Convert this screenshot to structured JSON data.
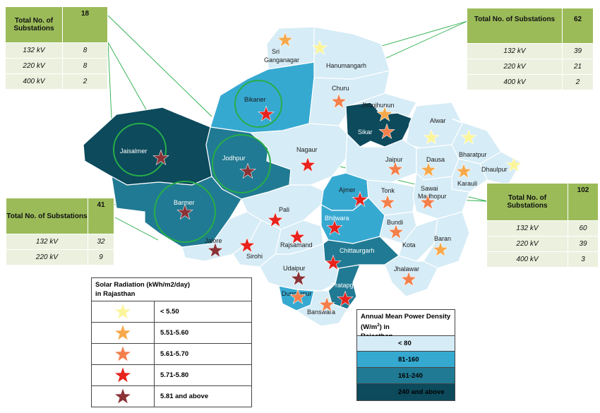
{
  "colors": {
    "density_lt80": "#d6ecf6",
    "density_81_160": "#36a9d1",
    "density_161_240": "#217a93",
    "density_240_above": "#0c4a5c",
    "star_lt550": "#fbf59a",
    "star_551_560": "#f6a84a",
    "star_561_570": "#f37f4b",
    "star_571_580": "#e8221c",
    "star_581_above": "#8a3236",
    "table_header": "#9bbb59",
    "table_row": "#ebf1de",
    "circle": "#27ad48"
  },
  "districts": {
    "sri_ganganagar": "Sri Ganganagar",
    "hanumangarh": "Hanumangarh",
    "bikaner": "Bikaner",
    "churu": "Churu",
    "jhunjhunun": "Jhunjhunun",
    "sikar": "Sikar",
    "alwar": "Alwar",
    "bharatpur": "Bharatpur",
    "dhaulpur": "Dhaulpur",
    "jaisalmer": "Jaisalmer",
    "jodhpur": "Jodhpur",
    "nagaur": "Nagaur",
    "jaipur": "Jaipur",
    "dausa": "Dausa",
    "karauli": "Karauli",
    "barmer": "Barmer",
    "ajmer": "Ajmer",
    "tonk": "Tonk",
    "sawai_madhopur_1": "Sawai",
    "sawai_madhopur_2": "Madhopur",
    "pali": "Pali",
    "bhilwara": "Bhilwara",
    "bundi": "Bundi",
    "jalore": "Jalore",
    "sirohi": "Sirohi",
    "rajsamand": "Rajsamand",
    "kota": "Kota",
    "baran": "Baran",
    "chittaurgarh": "Chittaurgarh",
    "udaipur": "Udaipur",
    "jhalawar": "Jhalawar",
    "pratapgarh": "Pratapgarh",
    "dungarpur": "Dungarpur",
    "banswara": "Banswara"
  },
  "substation_tables": {
    "northwest": {
      "title": "Total No. of Substations",
      "total": "18",
      "rows": [
        {
          "voltage": "132 kV",
          "count": "8"
        },
        {
          "voltage": "220 kV",
          "count": "8"
        },
        {
          "voltage": "400 kV",
          "count": "2"
        }
      ]
    },
    "northeast": {
      "title": "Total No. of Substations",
      "total": "62",
      "rows": [
        {
          "voltage": "132 kV",
          "count": "39"
        },
        {
          "voltage": "220 kV",
          "count": "21"
        },
        {
          "voltage": "400 kV",
          "count": "2"
        }
      ]
    },
    "southwest": {
      "title": "Total No. of Substations",
      "total": "41",
      "rows": [
        {
          "voltage": "132 kV",
          "count": "32"
        },
        {
          "voltage": "220 kV",
          "count": "9"
        }
      ]
    },
    "east": {
      "title": "Total No. of Substations",
      "total": "102",
      "rows": [
        {
          "voltage": "132 kV",
          "count": "60"
        },
        {
          "voltage": "220 kV",
          "count": "39"
        },
        {
          "voltage": "400 kV",
          "count": "3"
        }
      ]
    }
  },
  "solar_legend": {
    "title_line1": "Solar Radiation (kWh/m2/day)",
    "title_line2": "in Rajasthan",
    "items": [
      "< 5.50",
      "5.51-5.60",
      "5.61-5.70",
      "5.71-5.80",
      "5.81 and above"
    ]
  },
  "density_legend": {
    "title_pre": "Annual Mean Power Density (W/m",
    "title_sup": "2",
    "title_post": ") in",
    "title_line2": "Rajasthan",
    "items": [
      "< 80",
      "81-160",
      "161-240",
      "240 and above"
    ]
  }
}
